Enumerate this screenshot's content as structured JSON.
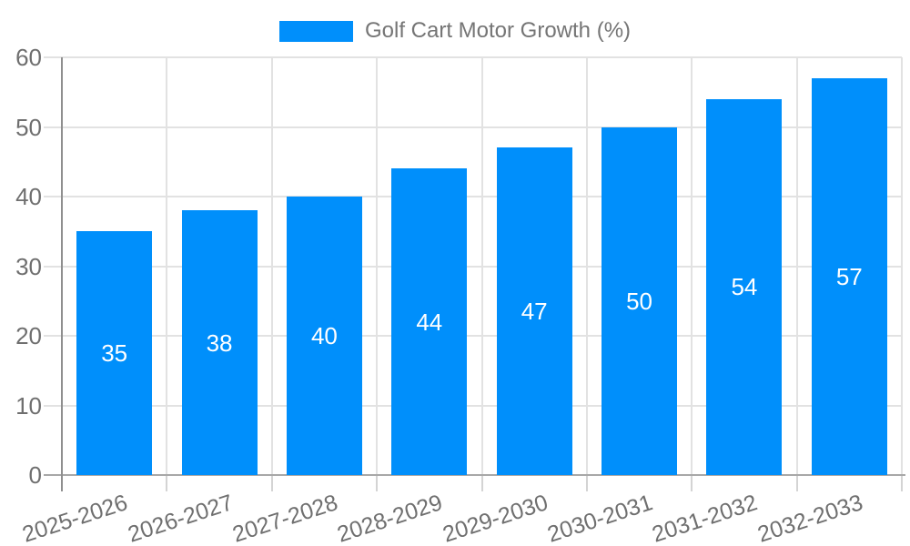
{
  "legend": {
    "label": "Golf Cart Motor Growth (%)",
    "marker_color": "#008FFB"
  },
  "chart_data": {
    "type": "bar",
    "title": "Golf Cart Motor Growth (%)",
    "categories": [
      "2025-2026",
      "2026-2027",
      "2027-2028",
      "2028-2029",
      "2029-2030",
      "2030-2031",
      "2031-2032",
      "2032-2033"
    ],
    "values": [
      35,
      38,
      40,
      44,
      47,
      50,
      54,
      57
    ],
    "value_labels": [
      "35",
      "38",
      "40",
      "44",
      "47",
      "50",
      "54",
      "57"
    ],
    "ylim": [
      0,
      60
    ],
    "yticks": [
      0,
      10,
      20,
      30,
      40,
      50,
      60
    ],
    "ytick_labels": [
      "0",
      "10",
      "20",
      "30",
      "40",
      "50",
      "60"
    ],
    "xlabel": "",
    "ylabel": "",
    "grid": true,
    "legend_position": "top",
    "x_label_rotation_deg": -18,
    "bar_color": "#008FFB",
    "value_label_color": "#FFFFFF",
    "axis_text_color": "#6F6F6F",
    "grid_color": "#E2E2E2"
  }
}
